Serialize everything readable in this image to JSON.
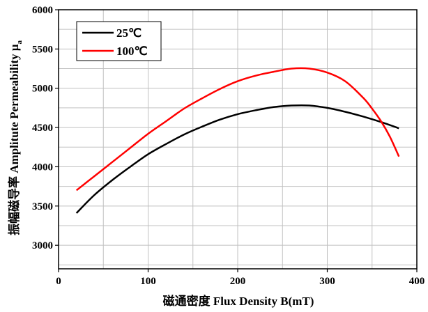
{
  "chart_data": {
    "type": "line",
    "title": "",
    "xlabel": "磁通密度 Flux Density B(mT)",
    "ylabel_main": "振幅磁导率 Amplitute Permeability μ",
    "ylabel_sub": "a",
    "xlim": [
      0,
      400
    ],
    "ylim": [
      2700,
      6000
    ],
    "x_ticks": [
      "0",
      "100",
      "200",
      "300",
      "400"
    ],
    "y_ticks": [
      "3000",
      "3500",
      "4000",
      "4500",
      "5000",
      "5500",
      "6000"
    ],
    "grid": true,
    "legend_position": "top-left",
    "series": [
      {
        "name": "25℃",
        "color": "#000000",
        "x": [
          20,
          40,
          60,
          80,
          100,
          120,
          140,
          160,
          180,
          200,
          220,
          240,
          260,
          280,
          300,
          320,
          340,
          360,
          380
        ],
        "y": [
          3410,
          3640,
          3830,
          4000,
          4160,
          4290,
          4410,
          4510,
          4600,
          4670,
          4720,
          4760,
          4780,
          4780,
          4750,
          4700,
          4640,
          4570,
          4490
        ]
      },
      {
        "name": "100℃",
        "color": "#ff0000",
        "x": [
          20,
          40,
          60,
          80,
          100,
          120,
          140,
          160,
          180,
          200,
          220,
          240,
          260,
          280,
          300,
          320,
          340,
          350,
          360,
          370,
          380
        ],
        "y": [
          3700,
          3880,
          4060,
          4240,
          4420,
          4580,
          4740,
          4870,
          4990,
          5090,
          5160,
          5210,
          5250,
          5250,
          5200,
          5090,
          4880,
          4740,
          4580,
          4380,
          4130
        ]
      }
    ]
  }
}
